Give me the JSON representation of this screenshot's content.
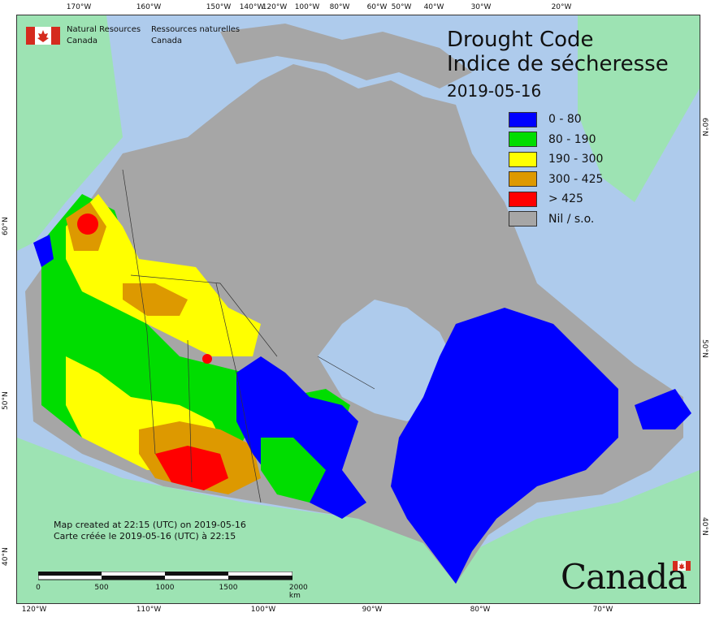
{
  "agency": {
    "name_en_line1": "Natural Resources",
    "name_en_line2": "Canada",
    "name_fr_line1": "Ressources naturelles",
    "name_fr_line2": "Canada"
  },
  "title": {
    "en": "Drought Code",
    "fr": "Indice de sécheresse",
    "date": "2019-05-16"
  },
  "legend": [
    {
      "label": "0 - 80",
      "color": "#0000ff"
    },
    {
      "label": "80 - 190",
      "color": "#00dd00"
    },
    {
      "label": "190 - 300",
      "color": "#ffff00"
    },
    {
      "label": "300 - 425",
      "color": "#dd9900"
    },
    {
      "label": "> 425",
      "color": "#ff0000"
    },
    {
      "label": "Nil / s.o.",
      "color": "#a6a6a6"
    }
  ],
  "colors": {
    "ocean": "#aecbec",
    "land_other": "#9de3b3",
    "no_data": "#a6a6a6"
  },
  "credits": {
    "en": "Map created at 22:15 (UTC) on 2019-05-16",
    "fr": "Carte créée le 2019-05-16 (UTC) à 22:15"
  },
  "scale_bar": {
    "ticks": [
      "0",
      "500",
      "1000",
      "1500",
      "2000 km"
    ]
  },
  "graticule": {
    "top": [
      "170°W",
      "160°W",
      "150°W",
      "140°W",
      "120°W",
      "100°W",
      "80°W",
      "60°W",
      "50°W",
      "40°W",
      "30°W",
      "20°W"
    ],
    "bottom": [
      "120°W",
      "110°W",
      "100°W",
      "90°W",
      "80°W",
      "70°W"
    ],
    "left": [
      "60°N",
      "50°N",
      "40°N"
    ],
    "right": [
      "60°N",
      "50°N",
      "40°N"
    ]
  },
  "wordmark": "Canada"
}
